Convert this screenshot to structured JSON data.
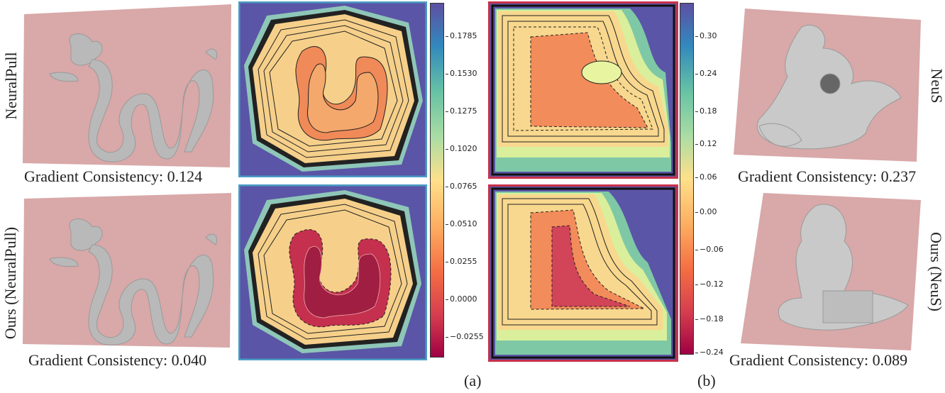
{
  "row_labels_left": [
    "NeuralPull",
    "Ours (NeuralPull)"
  ],
  "row_labels_right": [
    "NeuS",
    "Ours (NeuS)"
  ],
  "captions": {
    "a_top": "Gradient Consistency: 0.124",
    "a_bottom": "Gradient Consistency: 0.040",
    "b_top": "Gradient Consistency: 0.237",
    "b_bottom": "Gradient Consistency: 0.089"
  },
  "panel_letters": [
    "(a)",
    "(b)"
  ],
  "colorbar_a_ticks": [
    "0.1785",
    "0.1530",
    "0.1275",
    "0.1020",
    "0.0765",
    "0.0510",
    "0.0255",
    "0.0000",
    "−0.0255"
  ],
  "colorbar_b_ticks": [
    "0.30",
    "0.24",
    "0.18",
    "0.12",
    "0.06",
    "0.00",
    "−0.06",
    "−0.12",
    "−0.18",
    "−0.24"
  ],
  "colors": {
    "frame_a": "#4a9cc4",
    "frame_b": "#c8304a",
    "plane": "#d9a8a8"
  }
}
